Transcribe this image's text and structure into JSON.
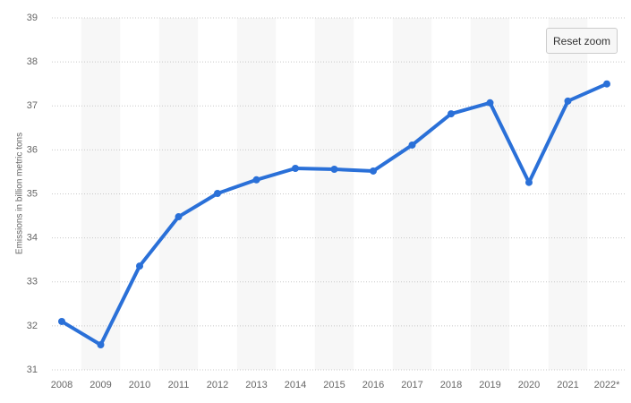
{
  "chart_data": {
    "type": "line",
    "y_label": "Emissions in billion metric tons",
    "categories": [
      "2008",
      "2009",
      "2010",
      "2011",
      "2012",
      "2013",
      "2014",
      "2015",
      "2016",
      "2017",
      "2018",
      "2019",
      "2020",
      "2021",
      "2022*"
    ],
    "values": [
      32.1,
      31.57,
      33.36,
      34.48,
      35.01,
      35.32,
      35.58,
      35.56,
      35.52,
      36.11,
      36.82,
      37.07,
      35.26,
      37.11,
      37.5
    ],
    "color": "#2a70d8",
    "ylim": [
      31,
      39
    ],
    "yticks": [
      31,
      32,
      33,
      34,
      35,
      36,
      37,
      38,
      39
    ],
    "grid": true
  },
  "button": {
    "label": "Reset zoom"
  }
}
